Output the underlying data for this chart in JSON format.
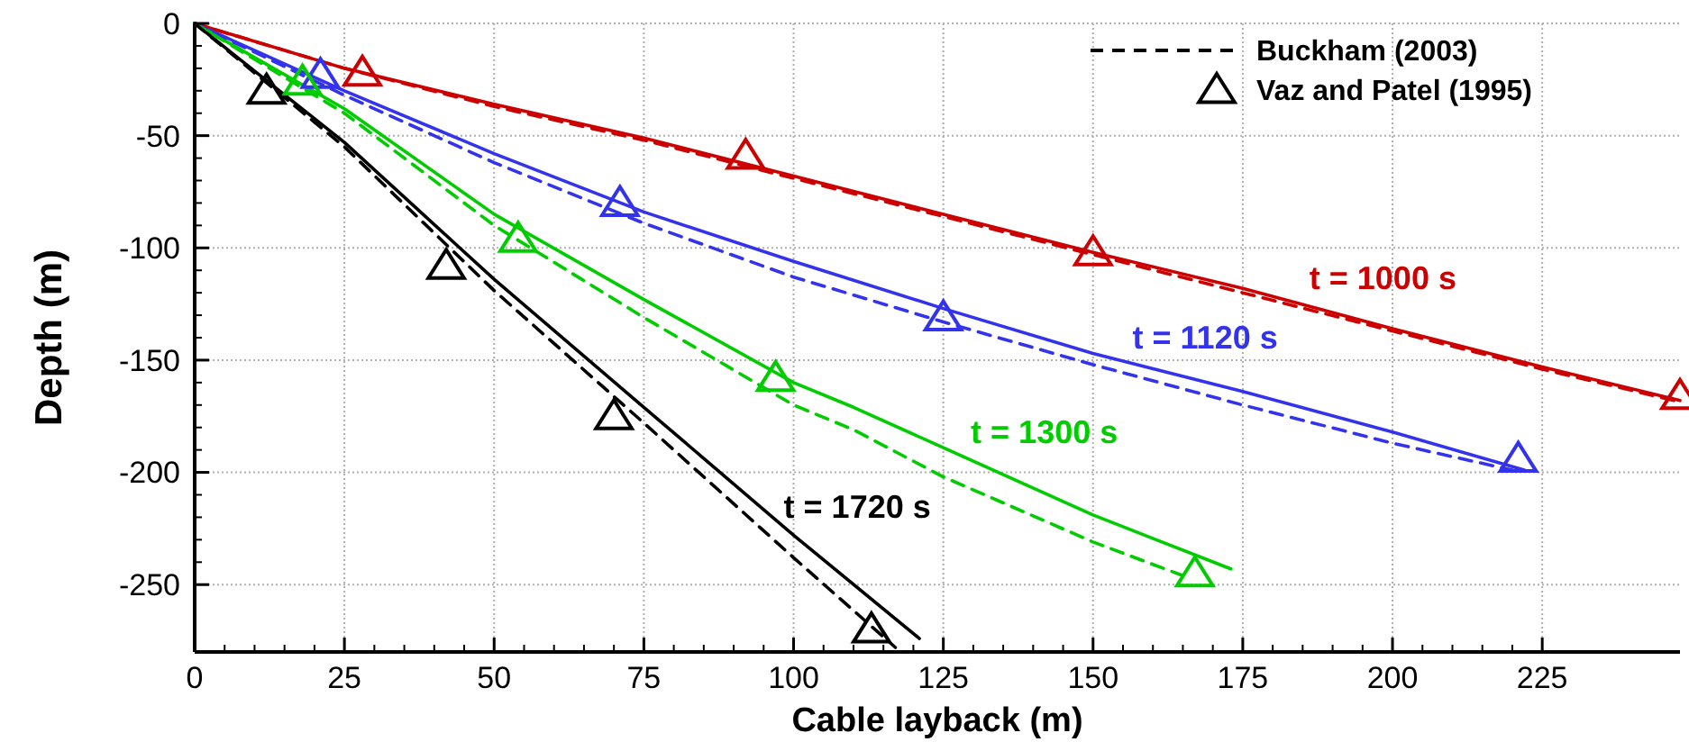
{
  "chart_data": {
    "type": "line",
    "xlabel": "Cable layback (m)",
    "ylabel": "Depth (m)",
    "xlim": [
      0,
      248
    ],
    "ylim": [
      -280,
      0
    ],
    "xticks": [
      0,
      25,
      50,
      75,
      100,
      125,
      150,
      175,
      200,
      225
    ],
    "yticks": [
      -250,
      -200,
      -150,
      -100,
      -50,
      0
    ],
    "grid": true,
    "legend": "top right",
    "series": [
      {
        "name": "t = 1000 s",
        "color": "#cc0000",
        "line_style": "solid",
        "x": [
          0,
          25,
          50,
          75,
          100,
          125,
          150,
          175,
          200,
          225,
          248
        ],
        "values": [
          0,
          -20,
          -36,
          -51,
          -68,
          -85,
          -102,
          -118,
          -136,
          -153,
          -168
        ]
      },
      {
        "name": "t = 1120 s",
        "color": "#3333ee",
        "line_style": "solid",
        "x": [
          0,
          25,
          50,
          75,
          100,
          125,
          150,
          175,
          200,
          222
        ],
        "values": [
          0,
          -30,
          -58,
          -84,
          -106,
          -127,
          -147,
          -164,
          -182,
          -199
        ]
      },
      {
        "name": "t = 1300 s",
        "color": "#00cc00",
        "line_style": "solid",
        "x": [
          0,
          25,
          50,
          75,
          100,
          110,
          125,
          150,
          173
        ],
        "values": [
          0,
          -38,
          -85,
          -123,
          -160,
          -171,
          -189,
          -219,
          -243
        ]
      },
      {
        "name": "t = 1720 s",
        "color": "#000000",
        "line_style": "solid",
        "x": [
          0,
          25,
          50,
          75,
          100,
          121
        ],
        "values": [
          0,
          -53,
          -114,
          -171,
          -228,
          -274
        ]
      },
      {
        "color": "#cc0000",
        "line_style": "dashed",
        "x": [
          0,
          25,
          50,
          75,
          100,
          125,
          150,
          175,
          200,
          225,
          247
        ],
        "values": [
          0,
          -20,
          -37,
          -52,
          -69,
          -86,
          -103,
          -120,
          -137,
          -154,
          -168
        ]
      },
      {
        "color": "#3333ee",
        "line_style": "dashed",
        "x": [
          0,
          25,
          50,
          75,
          100,
          125,
          150,
          175,
          200,
          220
        ],
        "values": [
          0,
          -32,
          -62,
          -89,
          -113,
          -133,
          -152,
          -170,
          -187,
          -199
        ]
      },
      {
        "color": "#00cc00",
        "line_style": "dashed",
        "x": [
          0,
          25,
          50,
          75,
          100,
          110,
          125,
          150,
          165
        ],
        "values": [
          0,
          -40,
          -90,
          -131,
          -170,
          -181,
          -202,
          -231,
          -246
        ]
      },
      {
        "name": "Buckham (2003)",
        "color": "#000000",
        "line_style": "dashed",
        "x": [
          0,
          25,
          50,
          75,
          100,
          117
        ],
        "values": [
          0,
          -55,
          -119,
          -178,
          -238,
          -278
        ]
      },
      {
        "type": "scatter",
        "marker": "triangle",
        "color": "#cc0000",
        "x": [
          28,
          92,
          150,
          248
        ],
        "values": [
          -22,
          -59,
          -102,
          -166
        ]
      },
      {
        "type": "scatter",
        "marker": "triangle",
        "color": "#3333ee",
        "x": [
          21,
          71,
          125,
          221
        ],
        "values": [
          -23,
          -80,
          -131,
          -194
        ]
      },
      {
        "type": "scatter",
        "marker": "triangle",
        "color": "#00cc00",
        "x": [
          18,
          54,
          97,
          167
        ],
        "values": [
          -26,
          -96,
          -158,
          -245
        ]
      },
      {
        "name": "Vaz and Patel (1995)",
        "type": "scatter",
        "marker": "triangle",
        "color": "#000000",
        "x": [
          12,
          42,
          70,
          113
        ],
        "values": [
          -30,
          -108,
          -175,
          -270
        ]
      }
    ]
  }
}
